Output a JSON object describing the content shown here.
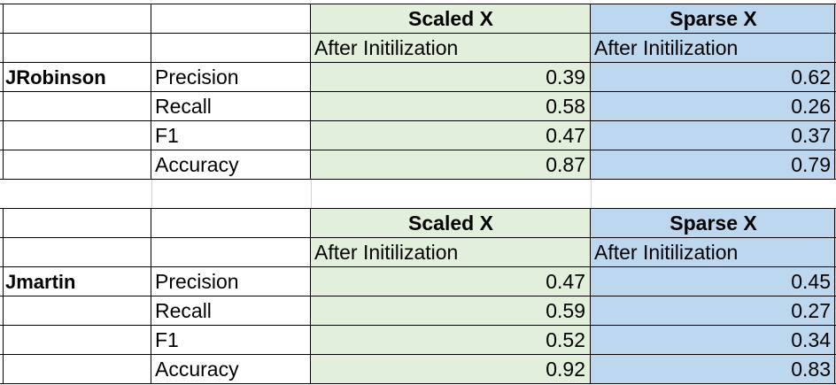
{
  "colors": {
    "scaled_fill": "#e2efda",
    "sparse_fill": "#bdd7ee",
    "border": "#000000",
    "gridline": "#d4d4d4"
  },
  "tables": [
    {
      "header_scaled": "Scaled X",
      "header_sparse": "Sparse X",
      "sub_scaled": "After Initilization",
      "sub_sparse": "After Initilization",
      "name": "JRobinson",
      "rows": [
        {
          "metric": "Precision",
          "scaled": "0.39",
          "sparse": "0.62"
        },
        {
          "metric": "Recall",
          "scaled": "0.58",
          "sparse": "0.26"
        },
        {
          "metric": "F1",
          "scaled": "0.47",
          "sparse": "0.37"
        },
        {
          "metric": "Accuracy",
          "scaled": "0.87",
          "sparse": "0.79"
        }
      ]
    },
    {
      "header_scaled": "Scaled X",
      "header_sparse": "Sparse X",
      "sub_scaled": "After Initilization",
      "sub_sparse": "After Initilization",
      "name": "Jmartin",
      "rows": [
        {
          "metric": "Precision",
          "scaled": "0.47",
          "sparse": "0.45"
        },
        {
          "metric": "Recall",
          "scaled": "0.59",
          "sparse": "0.27"
        },
        {
          "metric": "F1",
          "scaled": "0.52",
          "sparse": "0.34"
        },
        {
          "metric": "Accuracy",
          "scaled": "0.92",
          "sparse": "0.83"
        }
      ]
    }
  ]
}
